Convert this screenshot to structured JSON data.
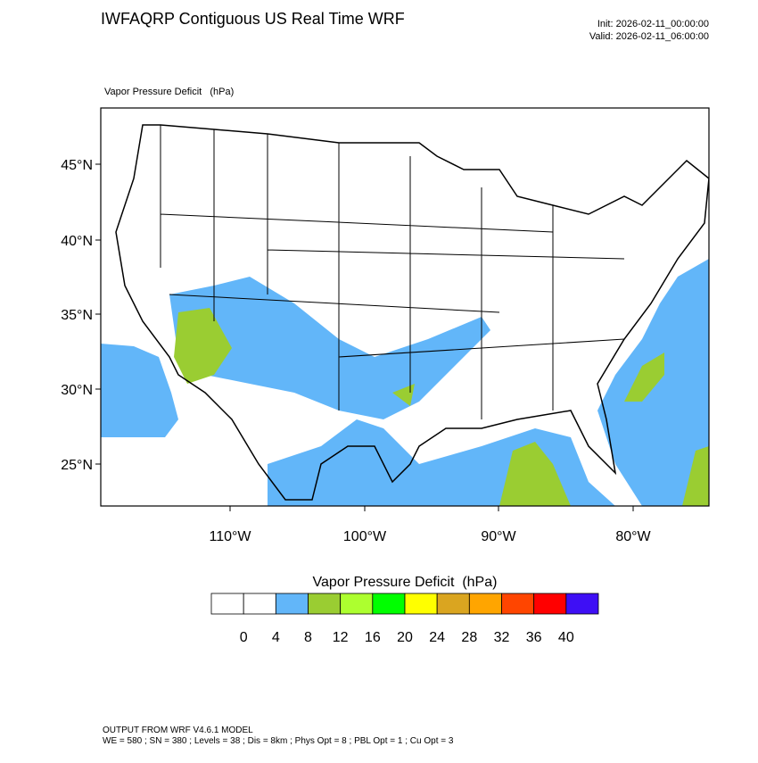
{
  "header": {
    "title": "IWFAQRP Contiguous US Real Time WRF",
    "init": "Init: 2026-02-11_00:00:00",
    "valid": "Valid: 2026-02-11_06:00:00"
  },
  "map": {
    "field_label": "Vapor Pressure Deficit   (hPa)",
    "lat_labels": [
      "45°N",
      "40°N",
      "35°N",
      "30°N",
      "25°N"
    ],
    "lon_labels": [
      "110°W",
      "100°W",
      "90°W",
      "80°W"
    ]
  },
  "colorbar": {
    "title": "Vapor Pressure Deficit  (hPa)",
    "levels": [
      0,
      4,
      8,
      12,
      16,
      20,
      24,
      28,
      32,
      36,
      40
    ],
    "colors": [
      "#ffffff",
      "#ffffff",
      "#62b6f9",
      "#9acd32",
      "#adff2f",
      "#00ff00",
      "#ffff00",
      "#daa520",
      "#ffa500",
      "#ff4500",
      "#ff0000",
      "#3e0ff5"
    ]
  },
  "footer": {
    "line1": "OUTPUT FROM WRF V4.6.1 MODEL",
    "line2": "WE = 580 ; SN = 380 ; Levels = 38 ; Dis = 8km ; Phys Opt = 8 ; PBL Opt = 1 ; Cu Opt = 3"
  }
}
